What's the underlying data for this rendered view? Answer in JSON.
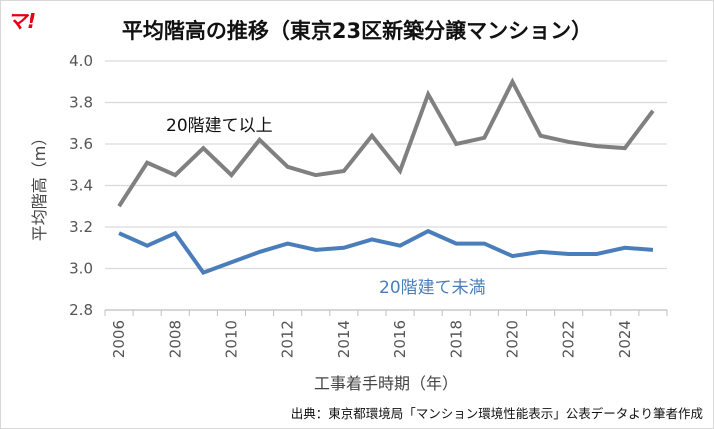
{
  "logo": "マ!",
  "source": "出典：東京都環境局「マンション環境性能表示」公表データより筆者作成",
  "chart_data": {
    "type": "line",
    "title": "平均階高の推移（東京23区新築分譲マンション）",
    "xlabel": "工事着手時期（年）",
    "ylabel": "平均階高（m）",
    "ylim": [
      2.8,
      4.0
    ],
    "yticks": [
      "2.8",
      "3.0",
      "3.2",
      "3.4",
      "3.6",
      "3.8",
      "4.0"
    ],
    "x": [
      2006,
      2007,
      2008,
      2009,
      2010,
      2011,
      2012,
      2013,
      2014,
      2015,
      2016,
      2017,
      2018,
      2019,
      2020,
      2021,
      2022,
      2023,
      2024,
      2025
    ],
    "xtick_labels": [
      "2006",
      "2008",
      "2010",
      "2012",
      "2014",
      "2016",
      "2018",
      "2020",
      "2022",
      "2024"
    ],
    "grid": true,
    "series": [
      {
        "name": "20階建て以上",
        "color": "#808080",
        "values": [
          3.3,
          3.51,
          3.45,
          3.58,
          3.45,
          3.62,
          3.49,
          3.45,
          3.47,
          3.64,
          3.47,
          3.84,
          3.6,
          3.63,
          3.9,
          3.64,
          3.61,
          3.59,
          3.58,
          3.76
        ]
      },
      {
        "name": "20階建て未満",
        "color": "#4a7ebb",
        "values": [
          3.17,
          3.11,
          3.17,
          2.98,
          3.03,
          3.08,
          3.12,
          3.09,
          3.1,
          3.14,
          3.11,
          3.18,
          3.12,
          3.12,
          3.06,
          3.08,
          3.07,
          3.07,
          3.1,
          3.09
        ]
      }
    ]
  }
}
